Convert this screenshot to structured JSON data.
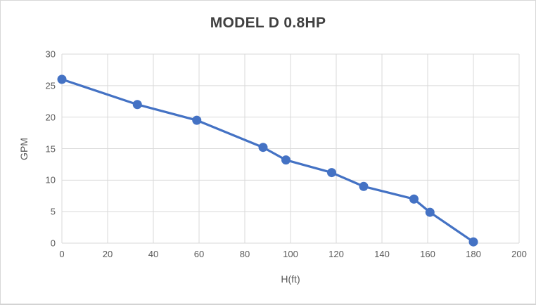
{
  "chart_data": {
    "type": "line",
    "title": "MODEL D 0.8HP",
    "xlabel": "H(ft)",
    "ylabel": "GPM",
    "x": [
      0,
      33,
      59,
      88,
      98,
      118,
      132,
      154,
      161,
      180
    ],
    "y": [
      26,
      22,
      19.5,
      15.2,
      13.2,
      11.2,
      9,
      7,
      4.9,
      0.2
    ],
    "xlim": [
      0,
      200
    ],
    "ylim": [
      0,
      30
    ],
    "xtick_step": 20,
    "ytick_step": 5,
    "grid": true,
    "legend_position": "none",
    "colors": {
      "line": "#4472C4",
      "marker": "#4472C4",
      "gridline": "#D9D9D9",
      "axis_text": "#595959",
      "title_text": "#404040",
      "background": "#FFFFFF",
      "border": "#D8D8D8"
    }
  }
}
